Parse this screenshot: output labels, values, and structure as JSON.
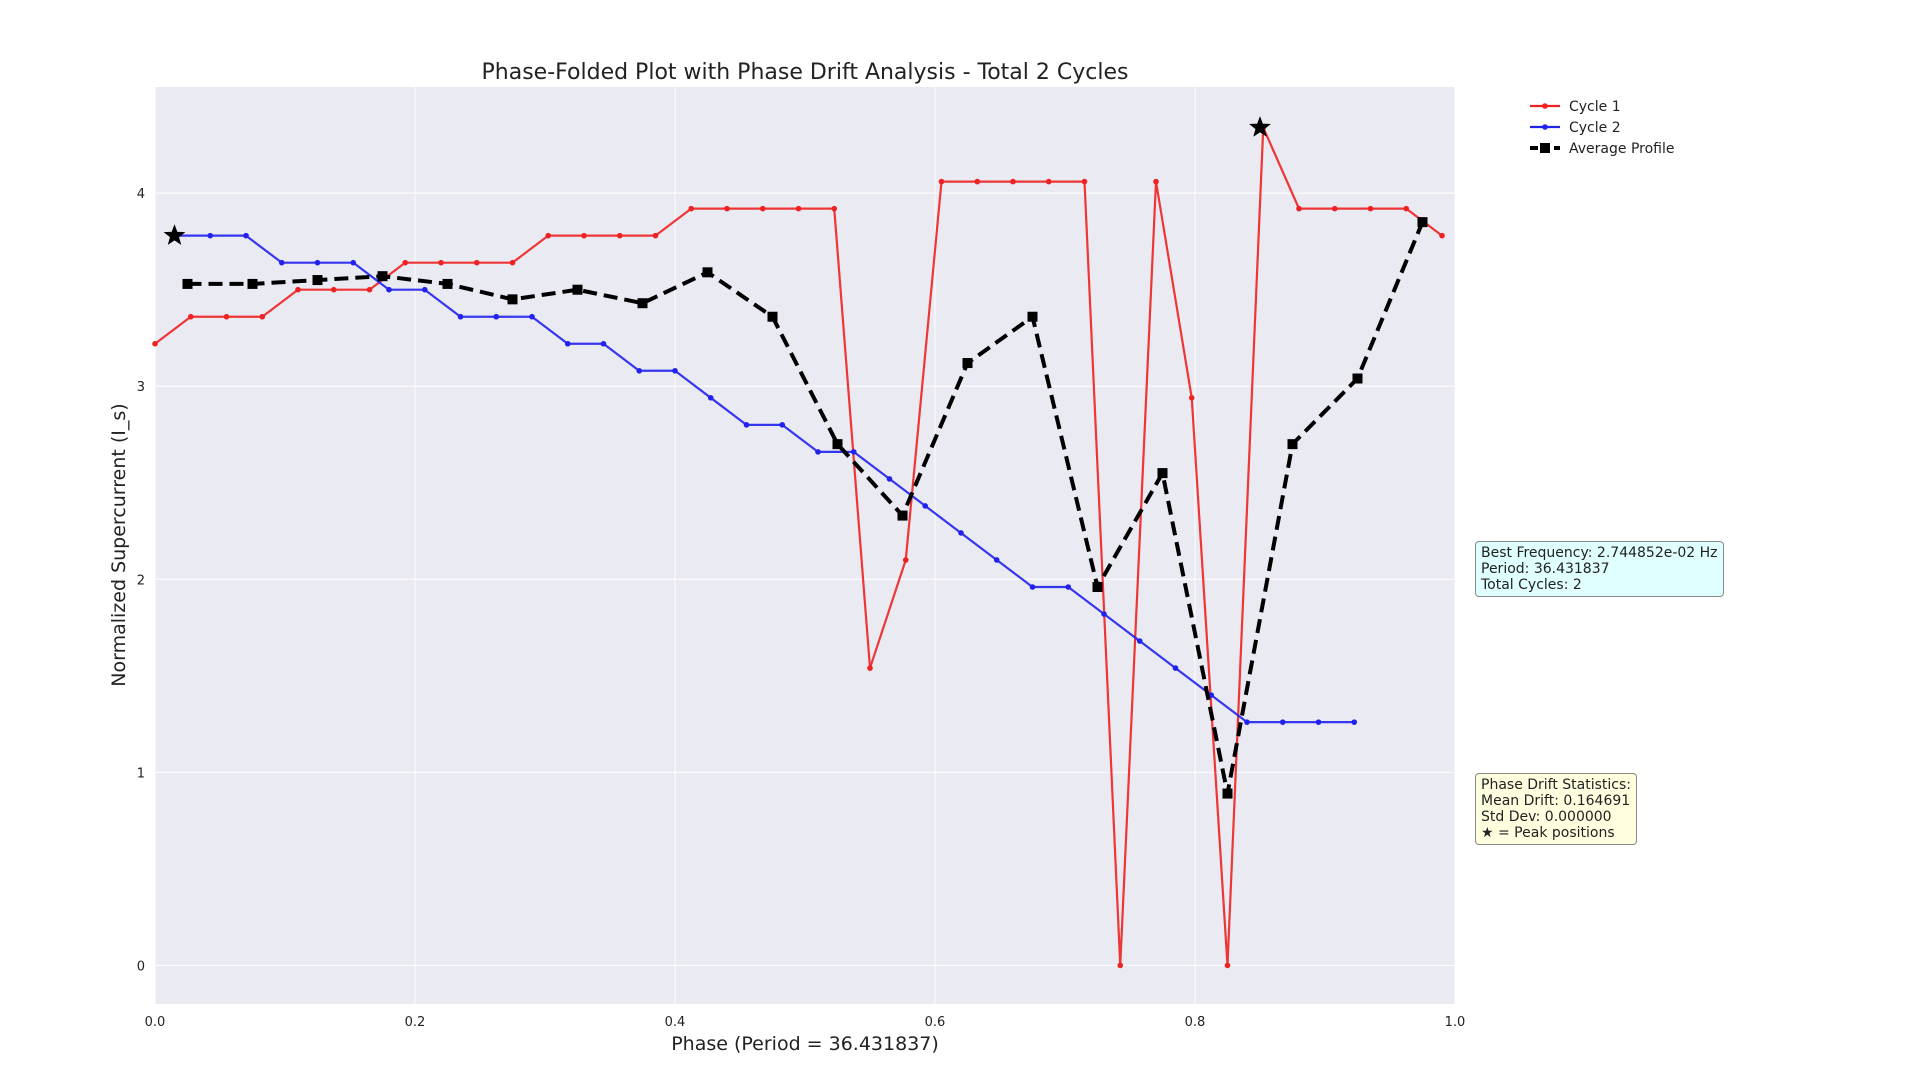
{
  "chart_data": {
    "type": "line",
    "title": "Phase-Folded Plot with Phase Drift Analysis - Total 2 Cycles",
    "xlabel": "Phase (Period = 36.431837)",
    "ylabel": "Normalized Supercurrent (I_s)",
    "xlim": [
      0.0,
      1.0
    ],
    "ylim": [
      -0.2,
      4.55
    ],
    "x_ticks": [
      "0.0",
      "0.2",
      "0.4",
      "0.6",
      "0.8",
      "1.0"
    ],
    "y_ticks": [
      "0",
      "1",
      "2",
      "3",
      "4"
    ],
    "grid": true,
    "legend_position": "upper-right-outside",
    "series": [
      {
        "name": "Cycle 1",
        "color": "#ee2222",
        "style": "solid-dot",
        "x": [
          0.0,
          0.0275,
          0.055,
          0.0825,
          0.11,
          0.1375,
          0.165,
          0.1925,
          0.22,
          0.2475,
          0.275,
          0.3025,
          0.33,
          0.3575,
          0.385,
          0.4125,
          0.44,
          0.4675,
          0.495,
          0.5225,
          0.55,
          0.5775,
          0.605,
          0.6325,
          0.66,
          0.6875,
          0.715,
          0.7425,
          0.77,
          0.7975,
          0.825,
          0.8525,
          0.88,
          0.9075,
          0.935,
          0.9625,
          0.99
        ],
        "y": [
          3.22,
          3.36,
          3.36,
          3.36,
          3.5,
          3.5,
          3.5,
          3.64,
          3.64,
          3.64,
          3.64,
          3.78,
          3.78,
          3.78,
          3.78,
          3.92,
          3.92,
          3.92,
          3.92,
          3.92,
          1.54,
          2.1,
          4.06,
          4.06,
          4.06,
          4.06,
          4.06,
          0.0,
          4.06,
          2.94,
          0.0,
          4.34,
          3.92,
          3.92,
          3.92,
          3.92,
          3.78
        ]
      },
      {
        "name": "Cycle 2",
        "color": "#2222ee",
        "style": "solid-dot",
        "x": [
          0.015,
          0.0425,
          0.07,
          0.0975,
          0.125,
          0.1525,
          0.18,
          0.2075,
          0.235,
          0.2625,
          0.29,
          0.3175,
          0.345,
          0.3725,
          0.4,
          0.4275,
          0.455,
          0.4825,
          0.51,
          0.5375,
          0.565,
          0.5925,
          0.62,
          0.6475,
          0.675,
          0.7025,
          0.73,
          0.7575,
          0.785,
          0.8125,
          0.84,
          0.8675,
          0.895,
          0.9225
        ],
        "y": [
          3.78,
          3.78,
          3.78,
          3.64,
          3.64,
          3.64,
          3.5,
          3.5,
          3.36,
          3.36,
          3.36,
          3.22,
          3.22,
          3.08,
          3.08,
          2.94,
          2.8,
          2.8,
          2.66,
          2.66,
          2.52,
          2.38,
          2.24,
          2.1,
          1.96,
          1.96,
          1.82,
          1.68,
          1.54,
          1.4,
          1.26,
          1.26,
          1.26,
          1.26
        ]
      },
      {
        "name": "Average Profile",
        "color": "#000000",
        "style": "dashed-square",
        "x": [
          0.025,
          0.075,
          0.125,
          0.175,
          0.225,
          0.275,
          0.325,
          0.375,
          0.425,
          0.475,
          0.525,
          0.575,
          0.625,
          0.675,
          0.725,
          0.775,
          0.825,
          0.875,
          0.925,
          0.975
        ],
        "y": [
          3.53,
          3.53,
          3.55,
          3.57,
          3.53,
          3.45,
          3.5,
          3.43,
          3.59,
          3.36,
          2.7,
          2.33,
          3.12,
          3.36,
          1.96,
          2.55,
          0.89,
          2.7,
          3.04,
          3.85
        ]
      }
    ],
    "peak_markers": [
      {
        "x": 0.015,
        "y": 3.78
      },
      {
        "x": 0.85,
        "y": 4.34
      }
    ],
    "annotations": {
      "frequency_box": [
        "Best Frequency: 2.744852e-02 Hz",
        "Period: 36.431837",
        "Total Cycles: 2"
      ],
      "drift_box": [
        "Phase Drift Statistics:",
        "Mean Drift: 0.164691",
        "Std Dev: 0.000000",
        "★ = Peak positions"
      ]
    }
  }
}
